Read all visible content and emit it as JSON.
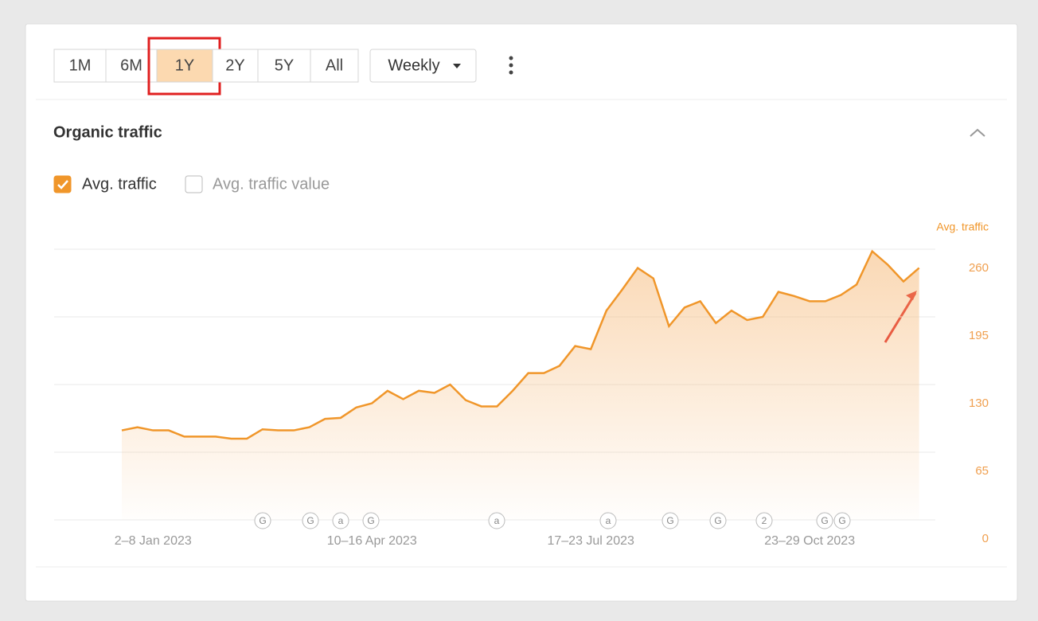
{
  "toolbar": {
    "ranges": [
      "1M",
      "6M",
      "1Y",
      "2Y",
      "5Y",
      "All"
    ],
    "selected": "1Y",
    "interval": "Weekly"
  },
  "section_title": "Organic traffic",
  "legend": [
    {
      "label": "Avg. traffic",
      "checked": true
    },
    {
      "label": "Avg. traffic value",
      "checked": false
    }
  ],
  "chart_data": {
    "type": "area",
    "y_axis_label": "Avg. traffic",
    "y_axis_side": "right",
    "categories": [
      null,
      null,
      "2–8 Jan 2023",
      null,
      null,
      null,
      null,
      null,
      null,
      null,
      null,
      null,
      null,
      null,
      null,
      null,
      "10–16 Apr 2023",
      null,
      null,
      null,
      null,
      null,
      null,
      null,
      null,
      null,
      null,
      null,
      null,
      null,
      "17–23 Jul 2023",
      null,
      null,
      null,
      null,
      null,
      null,
      null,
      null,
      null,
      null,
      null,
      null,
      null,
      "23–29 Oct 2023",
      null,
      null,
      null,
      null,
      null,
      null,
      null
    ],
    "series": [
      {
        "name": "Avg. traffic",
        "color": "#f0962a",
        "values": [
          86,
          89,
          86,
          86,
          80,
          80,
          80,
          78,
          78,
          87,
          86,
          86,
          89,
          97,
          98,
          108,
          112,
          124,
          116,
          124,
          122,
          130,
          115,
          109,
          109,
          124,
          141,
          141,
          148,
          167,
          164,
          201,
          221,
          242,
          232,
          186,
          204,
          210,
          189,
          201,
          192,
          195,
          219,
          215,
          210,
          210,
          216,
          226,
          258,
          245,
          229,
          242
        ]
      }
    ],
    "ylim": [
      0,
      260
    ],
    "yticks": [
      0,
      65,
      130,
      195,
      260
    ],
    "grid": true
  },
  "events": [
    "G",
    "G",
    "a",
    "G",
    "a",
    "a",
    "G",
    "G",
    "2",
    "G",
    "G"
  ]
}
